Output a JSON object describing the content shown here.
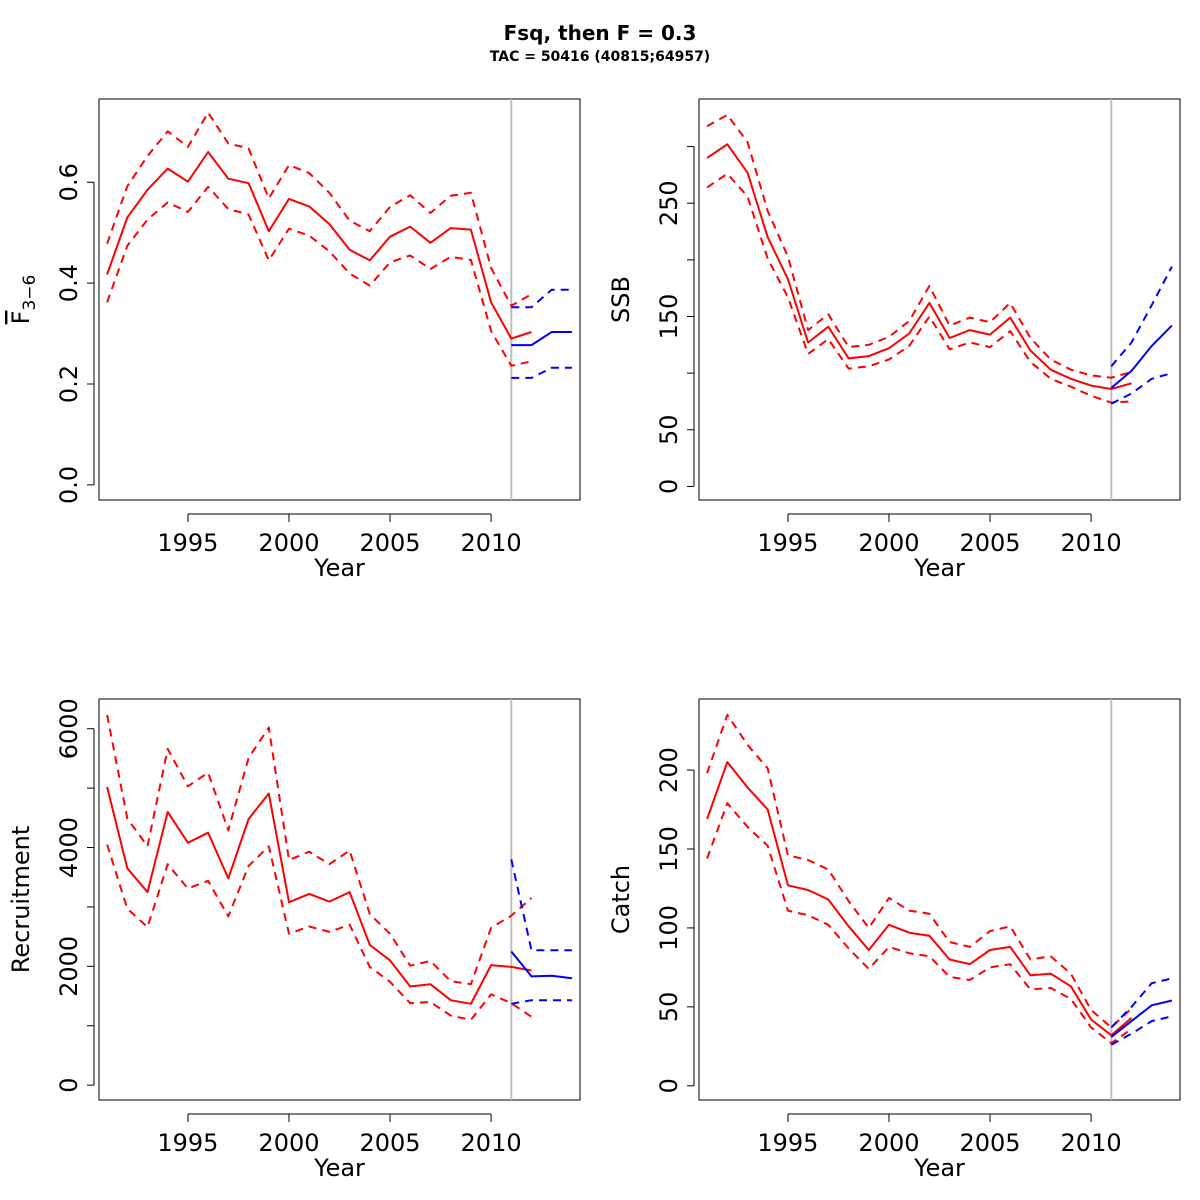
{
  "figure": {
    "title": "Fsq, then F = 0.3",
    "subtitle": "TAC = 50416 (40815;64957)"
  },
  "colors": {
    "history": "#ff0000",
    "projection": "#0000ff",
    "divider": "#bebebe",
    "axis": "#000000"
  },
  "chart_data": [
    {
      "type": "line",
      "xlabel": "Year",
      "ylabel_main": "F",
      "ylabel_sub": "3−6",
      "ylabel_overline": true,
      "xlim": [
        1990.6,
        2014.4
      ],
      "ylim": [
        -0.03,
        0.765
      ],
      "x_ticks": [
        1995,
        2000,
        2005,
        2010
      ],
      "x_ticks_minor": [],
      "y_ticks": [
        0.0,
        0.2,
        0.4,
        0.6
      ],
      "y_tick_labels": [
        "0.0",
        "0.2",
        "0.4",
        "0.6"
      ],
      "y_ticks_minor": [],
      "divider_x": 2011,
      "series": [
        {
          "color": "#ff0000",
          "style": "solid",
          "x": [
            1991,
            1992,
            1993,
            1994,
            1995,
            1996,
            1997,
            1998,
            1999,
            2000,
            2001,
            2002,
            2003,
            2004,
            2005,
            2006,
            2007,
            2008,
            2009,
            2010,
            2011,
            2012
          ],
          "y": [
            0.417,
            0.53,
            0.585,
            0.627,
            0.601,
            0.66,
            0.607,
            0.598,
            0.503,
            0.567,
            0.552,
            0.517,
            0.466,
            0.445,
            0.492,
            0.512,
            0.48,
            0.509,
            0.506,
            0.362,
            0.29,
            0.303
          ]
        },
        {
          "color": "#ff0000",
          "style": "dashed",
          "x": [
            1991,
            1992,
            1993,
            1994,
            1995,
            1996,
            1997,
            1998,
            1999,
            2000,
            2001,
            2002,
            2003,
            2004,
            2005,
            2006,
            2007,
            2008,
            2009,
            2010,
            2011,
            2012
          ],
          "y": [
            0.478,
            0.592,
            0.652,
            0.701,
            0.67,
            0.738,
            0.677,
            0.667,
            0.568,
            0.634,
            0.618,
            0.579,
            0.524,
            0.503,
            0.551,
            0.574,
            0.539,
            0.573,
            0.579,
            0.43,
            0.355,
            0.378
          ]
        },
        {
          "color": "#ff0000",
          "style": "dashed",
          "x": [
            1991,
            1992,
            1993,
            1994,
            1995,
            1996,
            1997,
            1998,
            1999,
            2000,
            2001,
            2002,
            2003,
            2004,
            2005,
            2006,
            2007,
            2008,
            2009,
            2010,
            2011,
            2012
          ],
          "y": [
            0.362,
            0.474,
            0.526,
            0.56,
            0.541,
            0.591,
            0.547,
            0.536,
            0.445,
            0.508,
            0.494,
            0.463,
            0.419,
            0.395,
            0.441,
            0.455,
            0.428,
            0.452,
            0.446,
            0.305,
            0.236,
            0.245
          ]
        },
        {
          "color": "#0000ff",
          "style": "solid",
          "x": [
            2011,
            2012,
            2013,
            2014
          ],
          "y": [
            0.277,
            0.277,
            0.303,
            0.303
          ]
        },
        {
          "color": "#0000ff",
          "style": "dashed",
          "x": [
            2011,
            2012,
            2013,
            2014
          ],
          "y": [
            0.352,
            0.352,
            0.387,
            0.387
          ]
        },
        {
          "color": "#0000ff",
          "style": "dashed",
          "x": [
            2011,
            2012,
            2013,
            2014
          ],
          "y": [
            0.212,
            0.212,
            0.232,
            0.232
          ]
        }
      ]
    },
    {
      "type": "line",
      "xlabel": "Year",
      "ylabel_main": "SSB",
      "xlim": [
        1990.6,
        2014.4
      ],
      "ylim": [
        -12,
        342
      ],
      "x_ticks": [
        1995,
        2000,
        2005,
        2010
      ],
      "x_ticks_minor": [],
      "y_ticks": [
        0,
        50,
        150,
        250
      ],
      "y_tick_labels": [
        "0",
        "50",
        "150",
        "250"
      ],
      "y_ticks_minor": [
        100,
        200,
        300
      ],
      "divider_x": 2011,
      "series": [
        {
          "color": "#ff0000",
          "style": "solid",
          "x": [
            1991,
            1992,
            1993,
            1994,
            1995,
            1996,
            1997,
            1998,
            1999,
            2000,
            2001,
            2002,
            2003,
            2004,
            2005,
            2006,
            2007,
            2008,
            2009,
            2010,
            2011,
            2012
          ],
          "y": [
            290,
            302,
            277,
            220,
            183,
            127,
            141,
            113,
            115,
            122,
            135,
            162,
            131,
            138,
            134,
            149,
            120,
            103,
            95,
            89,
            86,
            91
          ]
        },
        {
          "color": "#ff0000",
          "style": "dashed",
          "x": [
            1991,
            1992,
            1993,
            1994,
            1995,
            1996,
            1997,
            1998,
            1999,
            2000,
            2001,
            2002,
            2003,
            2004,
            2005,
            2006,
            2007,
            2008,
            2009,
            2010,
            2011,
            2012
          ],
          "y": [
            318,
            328,
            304,
            243,
            203,
            138,
            152,
            123,
            125,
            132,
            146,
            177,
            142,
            149,
            145,
            162,
            131,
            112,
            103,
            98,
            96,
            101
          ]
        },
        {
          "color": "#ff0000",
          "style": "dashed",
          "x": [
            1991,
            1992,
            1993,
            1994,
            1995,
            1996,
            1997,
            1998,
            1999,
            2000,
            2001,
            2002,
            2003,
            2004,
            2005,
            2006,
            2007,
            2008,
            2009,
            2010,
            2011,
            2012
          ],
          "y": [
            264,
            276,
            256,
            201,
            167,
            117,
            130,
            104,
            106,
            112,
            124,
            150,
            121,
            127,
            123,
            137,
            110,
            95,
            88,
            80,
            74,
            75
          ]
        },
        {
          "color": "#0000ff",
          "style": "solid",
          "x": [
            2011,
            2012,
            2013,
            2014
          ],
          "y": [
            87,
            102,
            124,
            142
          ]
        },
        {
          "color": "#0000ff",
          "style": "dashed",
          "x": [
            2011,
            2012,
            2013,
            2014
          ],
          "y": [
            106,
            127,
            160,
            194
          ]
        },
        {
          "color": "#0000ff",
          "style": "dashed",
          "x": [
            2011,
            2012,
            2013,
            2014
          ],
          "y": [
            73,
            82,
            95,
            100
          ]
        }
      ]
    },
    {
      "type": "line",
      "xlabel": "Year",
      "ylabel_main": "Recruitment",
      "xlim": [
        1990.6,
        2014.4
      ],
      "ylim": [
        -250,
        6500
      ],
      "x_ticks": [
        1995,
        2000,
        2005,
        2010
      ],
      "x_ticks_minor": [],
      "y_ticks": [
        0,
        2000,
        4000,
        6000
      ],
      "y_tick_labels": [
        "0",
        "2000",
        "4000",
        "6000"
      ],
      "y_ticks_minor": [
        1000,
        3000,
        5000
      ],
      "divider_x": 2011,
      "series": [
        {
          "color": "#ff0000",
          "style": "solid",
          "x": [
            1991,
            1992,
            1993,
            1994,
            1995,
            1996,
            1997,
            1998,
            1999,
            2000,
            2001,
            2002,
            2003,
            2004,
            2005,
            2006,
            2007,
            2008,
            2009,
            2010,
            2011,
            2012
          ],
          "y": [
            5020,
            3650,
            3250,
            4600,
            4080,
            4250,
            3480,
            4480,
            4910,
            3080,
            3220,
            3090,
            3250,
            2360,
            2100,
            1660,
            1700,
            1430,
            1370,
            2020,
            1990,
            1930
          ]
        },
        {
          "color": "#ff0000",
          "style": "dashed",
          "x": [
            1991,
            1992,
            1993,
            1994,
            1995,
            1996,
            1997,
            1998,
            1999,
            2000,
            2001,
            2002,
            2003,
            2004,
            2005,
            2006,
            2007,
            2008,
            2009,
            2010,
            2011,
            2012
          ],
          "y": [
            6230,
            4490,
            4020,
            5660,
            5030,
            5260,
            4290,
            5510,
            6020,
            3790,
            3930,
            3720,
            3950,
            2880,
            2550,
            2010,
            2090,
            1750,
            1700,
            2650,
            2850,
            3150
          ]
        },
        {
          "color": "#ff0000",
          "style": "dashed",
          "x": [
            1991,
            1992,
            1993,
            1994,
            1995,
            1996,
            1997,
            1998,
            1999,
            2000,
            2001,
            2002,
            2003,
            2004,
            2005,
            2006,
            2007,
            2008,
            2009,
            2010,
            2011,
            2012
          ],
          "y": [
            4050,
            2970,
            2660,
            3720,
            3310,
            3440,
            2840,
            3690,
            4020,
            2550,
            2670,
            2580,
            2700,
            1990,
            1740,
            1380,
            1400,
            1170,
            1100,
            1530,
            1380,
            1150
          ]
        },
        {
          "color": "#0000ff",
          "style": "solid",
          "x": [
            2011,
            2012,
            2013,
            2014
          ],
          "y": [
            2250,
            1830,
            1840,
            1800
          ]
        },
        {
          "color": "#0000ff",
          "style": "dashed",
          "x": [
            2011,
            2012,
            2013,
            2014
          ],
          "y": [
            3800,
            2270,
            2270,
            2270
          ]
        },
        {
          "color": "#0000ff",
          "style": "dashed",
          "x": [
            2011,
            2012,
            2013,
            2014
          ],
          "y": [
            1370,
            1430,
            1430,
            1430
          ]
        }
      ]
    },
    {
      "type": "line",
      "xlabel": "Year",
      "ylabel_main": "Catch",
      "xlim": [
        1990.6,
        2014.4
      ],
      "ylim": [
        -9,
        245
      ],
      "x_ticks": [
        1995,
        2000,
        2005,
        2010
      ],
      "x_ticks_minor": [],
      "y_ticks": [
        0,
        50,
        100,
        150,
        200
      ],
      "y_tick_labels": [
        "0",
        "50",
        "100",
        "150",
        "200"
      ],
      "y_ticks_minor": [],
      "divider_x": 2011,
      "series": [
        {
          "color": "#ff0000",
          "style": "solid",
          "x": [
            1991,
            1992,
            1993,
            1994,
            1995,
            1996,
            1997,
            1998,
            1999,
            2000,
            2001,
            2002,
            2003,
            2004,
            2005,
            2006,
            2007,
            2008,
            2009,
            2010,
            2011,
            2012
          ],
          "y": [
            169,
            205,
            189,
            175,
            127,
            124,
            118,
            101,
            86,
            102,
            97,
            95,
            80,
            77,
            86,
            88,
            70,
            71,
            63,
            42,
            32,
            43
          ]
        },
        {
          "color": "#ff0000",
          "style": "dashed",
          "x": [
            1991,
            1992,
            1993,
            1994,
            1995,
            1996,
            1997,
            1998,
            1999,
            2000,
            2001,
            2002,
            2003,
            2004,
            2005,
            2006,
            2007,
            2008,
            2009,
            2010,
            2011,
            2012
          ],
          "y": [
            198,
            235,
            216,
            201,
            146,
            143,
            137,
            117,
            100,
            119,
            111,
            109,
            91,
            88,
            98,
            101,
            80,
            82,
            71,
            48,
            37,
            49
          ]
        },
        {
          "color": "#ff0000",
          "style": "dashed",
          "x": [
            1991,
            1992,
            1993,
            1994,
            1995,
            1996,
            1997,
            1998,
            1999,
            2000,
            2001,
            2002,
            2003,
            2004,
            2005,
            2006,
            2007,
            2008,
            2009,
            2010,
            2011,
            2012
          ],
          "y": [
            144,
            179,
            164,
            152,
            111,
            108,
            102,
            87,
            74,
            88,
            84,
            82,
            69,
            67,
            75,
            77,
            61,
            62,
            55,
            37,
            27,
            36
          ]
        },
        {
          "color": "#0000ff",
          "style": "solid",
          "x": [
            2011,
            2012,
            2013,
            2014
          ],
          "y": [
            31,
            41,
            51,
            54
          ]
        },
        {
          "color": "#0000ff",
          "style": "dashed",
          "x": [
            2011,
            2012,
            2013,
            2014
          ],
          "y": [
            37,
            50,
            65,
            68
          ]
        },
        {
          "color": "#0000ff",
          "style": "dashed",
          "x": [
            2011,
            2012,
            2013,
            2014
          ],
          "y": [
            26,
            33,
            41,
            44
          ]
        }
      ]
    }
  ]
}
